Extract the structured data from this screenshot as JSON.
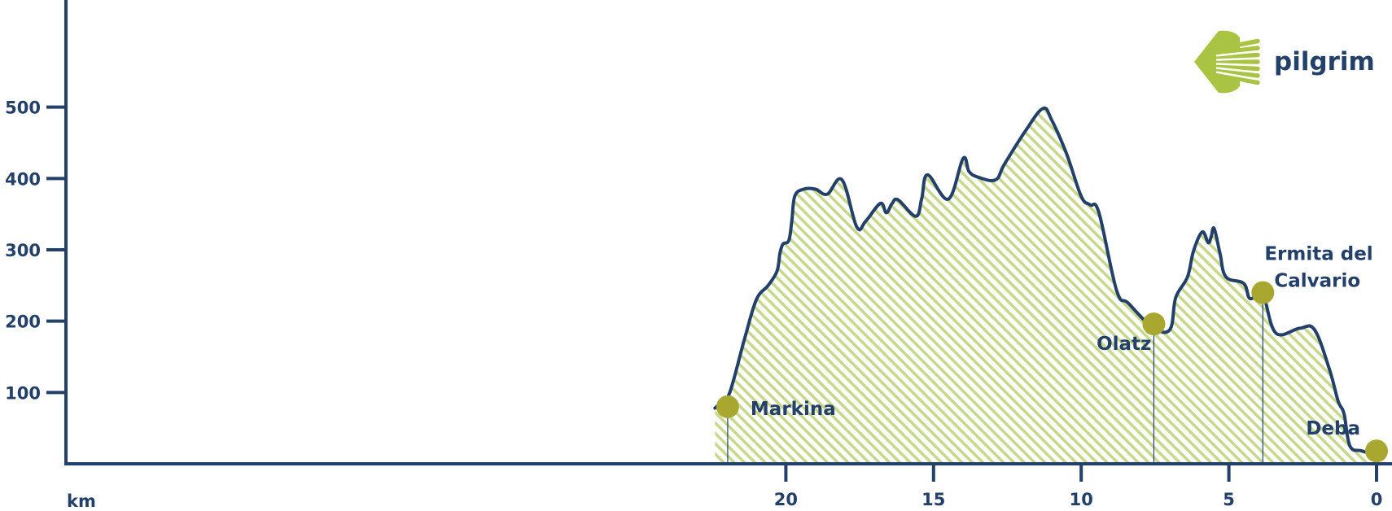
{
  "brand": {
    "name": "pilgrim",
    "icon": "scallop-shell-icon"
  },
  "colors": {
    "axis": "#22406a",
    "line": "#22406a",
    "fill_stripe": "#c6d98a",
    "marker": "#a8a730"
  },
  "chart_data": {
    "type": "area",
    "title": "",
    "xlabel": "km",
    "ylabel": "",
    "x_reversed": true,
    "xlim": [
      22.4,
      0
    ],
    "ylim": [
      0,
      650
    ],
    "x_ticks": [
      20,
      15,
      10,
      5,
      0
    ],
    "x_tick_labels": [
      "20",
      "15",
      "10",
      "5",
      "0"
    ],
    "y_ticks": [
      100,
      200,
      300,
      400,
      500
    ],
    "y_tick_labels": [
      "100",
      "200",
      "300",
      "400",
      "500"
    ],
    "grid": false,
    "series": [
      {
        "name": "",
        "points": [
          [
            22.4,
            78
          ],
          [
            22.2,
            86
          ],
          [
            21.9,
            100
          ],
          [
            21.4,
            175
          ],
          [
            21.0,
            230
          ],
          [
            20.6,
            250
          ],
          [
            20.3,
            270
          ],
          [
            20.2,
            295
          ],
          [
            20.1,
            308
          ],
          [
            19.9,
            313
          ],
          [
            19.8,
            340
          ],
          [
            19.7,
            375
          ],
          [
            19.4,
            385
          ],
          [
            19.0,
            385
          ],
          [
            18.6,
            378
          ],
          [
            18.1,
            398
          ],
          [
            17.6,
            332
          ],
          [
            17.3,
            340
          ],
          [
            16.8,
            365
          ],
          [
            16.6,
            352
          ],
          [
            16.4,
            365
          ],
          [
            16.2,
            370
          ],
          [
            15.6,
            347
          ],
          [
            15.4,
            372
          ],
          [
            15.2,
            405
          ],
          [
            14.5,
            371
          ],
          [
            14.0,
            428
          ],
          [
            13.8,
            410
          ],
          [
            13.5,
            402
          ],
          [
            12.9,
            398
          ],
          [
            12.6,
            420
          ],
          [
            11.9,
            466
          ],
          [
            11.3,
            498
          ],
          [
            11.0,
            482
          ],
          [
            10.5,
            435
          ],
          [
            10.0,
            375
          ],
          [
            9.7,
            363
          ],
          [
            9.4,
            352
          ],
          [
            8.8,
            243
          ],
          [
            8.4,
            225
          ],
          [
            7.6,
            192
          ],
          [
            7.0,
            188
          ],
          [
            6.8,
            233
          ],
          [
            6.4,
            262
          ],
          [
            6.2,
            298
          ],
          [
            5.9,
            325
          ],
          [
            5.7,
            310
          ],
          [
            5.6,
            318
          ],
          [
            5.5,
            330
          ],
          [
            5.3,
            295
          ],
          [
            5.1,
            262
          ],
          [
            4.5,
            253
          ],
          [
            4.3,
            232
          ],
          [
            4.0,
            237
          ],
          [
            3.8,
            232
          ],
          [
            3.4,
            183
          ],
          [
            2.6,
            190
          ],
          [
            2.1,
            188
          ],
          [
            1.6,
            133
          ],
          [
            1.3,
            88
          ],
          [
            1.1,
            70
          ],
          [
            0.9,
            25
          ],
          [
            0.5,
            18
          ],
          [
            0.0,
            12
          ]
        ]
      }
    ],
    "annotations": [
      {
        "label": "Markina",
        "x": 21.97,
        "y": 80
      },
      {
        "label": "Olatz",
        "x": 7.54,
        "y": 196
      },
      {
        "label": "Ermita del\nCalvario",
        "lines": [
          "Ermita del",
          "Calvario"
        ],
        "x": 3.85,
        "y": 240
      },
      {
        "label": "Deba",
        "x": 0.0,
        "y": 18
      }
    ]
  }
}
